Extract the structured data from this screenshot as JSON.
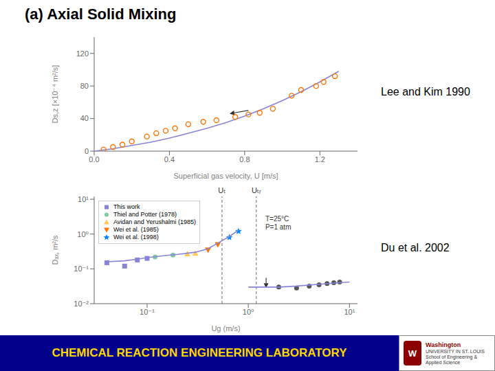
{
  "title": "(a) Axial Solid Mixing",
  "footer": {
    "text": "CHEMICAL REACTION ENGINEERING LABORATORY",
    "color": "#FFD700",
    "background": "#00008B"
  },
  "logo": {
    "mark": {
      "text": "W",
      "color": "#FFFFFF",
      "background": "#8B0000"
    },
    "lines": [
      {
        "text": "Washington",
        "color": "#8B0000"
      },
      {
        "text": "UNIVERSITY IN ST. LOUIS",
        "color": "#333333"
      },
      {
        "text": "School of Engineering &\nApplied Science",
        "color": "#333333"
      }
    ]
  },
  "chart_data": [
    {
      "type": "scatter",
      "title": "Lee and Kim 1990",
      "x_label": "Superficial gas velocity, U [m/s]",
      "y_label": "Ds,z [×10⁻⁴ m²/s]",
      "xlim": [
        0,
        1.4
      ],
      "ylim": [
        0,
        140
      ],
      "xticks": [
        {
          "value": 0,
          "label": "0.0"
        },
        0.4,
        0.8,
        1.2
      ],
      "yticks": [
        0,
        40,
        80,
        120
      ],
      "grid": false,
      "series": [
        {
          "type": "line",
          "line_style": "solid",
          "x": [
            0,
            0.1,
            0.2,
            0.3,
            0.4,
            0.5,
            0.6,
            0.7,
            0.8,
            0.9,
            1.0,
            1.1,
            1.2,
            1.3
          ],
          "values": [
            0,
            3,
            7,
            11,
            16,
            22,
            28,
            35,
            43,
            52,
            62,
            73,
            85,
            98
          ]
        },
        {
          "type": "scatter",
          "marker": "circle_open",
          "x": [
            0.05,
            0.1,
            0.15,
            0.2,
            0.28,
            0.33,
            0.38,
            0.43,
            0.5,
            0.58,
            0.65,
            0.75,
            0.82,
            0.88,
            0.95,
            1.05,
            1.1,
            1.18,
            1.22,
            1.28
          ],
          "values": [
            2,
            5,
            8,
            12,
            18,
            22,
            25,
            28,
            33,
            36,
            38,
            42,
            45,
            47,
            52,
            68,
            75,
            80,
            85,
            92
          ]
        }
      ],
      "arrows": [
        {
          "x": 0.72,
          "y": 46,
          "x_from": 0.82,
          "y_from": 50
        }
      ]
    },
    {
      "type": "scatter",
      "title": "Du et al. 2002",
      "x_label": "Ug (m/s)",
      "y_label": "Dₐₓ, m²/s",
      "log": true,
      "xlim": [
        0.03,
        12
      ],
      "ylim": [
        0.01,
        12
      ],
      "xticks": [
        {
          "value": 0.1,
          "label": "10⁻¹"
        },
        {
          "value": 1,
          "label": "10⁰"
        },
        {
          "value": 10,
          "label": "10¹"
        }
      ],
      "yticks": [
        {
          "value": 0.01,
          "label": "10⁻²"
        },
        {
          "value": 0.1,
          "label": "10⁻¹"
        },
        {
          "value": 1,
          "label": "10⁰"
        },
        {
          "value": 10,
          "label": "10¹"
        }
      ],
      "grid": false,
      "legend": "upper left",
      "series": [
        {
          "name": "This work",
          "type": "scatter",
          "marker": "square",
          "x": [
            0.04,
            0.06,
            0.08,
            0.1
          ],
          "values": [
            0.15,
            0.12,
            0.18,
            0.2
          ]
        },
        {
          "name": "Thiel and Potter (1978)",
          "type": "scatter",
          "marker": "circle",
          "x": [
            0.12,
            0.18
          ],
          "values": [
            0.22,
            0.25
          ]
        },
        {
          "name": "Avidan and Yerushalmi (1985)",
          "type": "scatter",
          "marker": "triangle_up",
          "x": [
            0.25,
            0.3
          ],
          "values": [
            0.27,
            0.28
          ]
        },
        {
          "name": "Wei et al. (1985)",
          "type": "scatter",
          "marker": "triangle_down",
          "x": [
            0.4,
            0.5
          ],
          "values": [
            0.35,
            0.5
          ]
        },
        {
          "name": "Wei et al. (1998)",
          "type": "scatter",
          "marker": "star",
          "x": [
            0.65,
            0.8
          ],
          "values": [
            0.8,
            1.2
          ]
        },
        {
          "type": "line",
          "line_style": "solid",
          "x": [
            0.04,
            0.06,
            0.08,
            0.1,
            0.15,
            0.2,
            0.3,
            0.4,
            0.5,
            0.65,
            0.8
          ],
          "values": [
            0.16,
            0.17,
            0.19,
            0.21,
            0.24,
            0.26,
            0.3,
            0.38,
            0.55,
            0.85,
            1.3
          ]
        },
        {
          "type": "scatter",
          "marker": "circle",
          "x": [
            2.0,
            3.0,
            4.0,
            5.0,
            6.0,
            7.0,
            8.0
          ],
          "values": [
            0.03,
            0.028,
            0.032,
            0.035,
            0.038,
            0.04,
            0.042
          ]
        },
        {
          "type": "line",
          "line_style": "solid",
          "x": [
            1.0,
            2.0,
            3.0,
            5.0,
            8.0,
            10.0
          ],
          "values": [
            0.03,
            0.03,
            0.032,
            0.036,
            0.04,
            0.042
          ]
        }
      ],
      "reference_lines": [
        {
          "x": 0.55,
          "label": "Uₜ",
          "line_style": "dashed"
        },
        {
          "x": 1.2,
          "label": "Uₜᵣ",
          "line_style": "dashed"
        }
      ],
      "annotations": [
        {
          "text": "T=25°C\nP=1 atm"
        }
      ],
      "arrows": [
        {
          "x": 1.5,
          "y": 0.028,
          "x_from": 1.5,
          "y_from": 0.055
        }
      ]
    }
  ]
}
